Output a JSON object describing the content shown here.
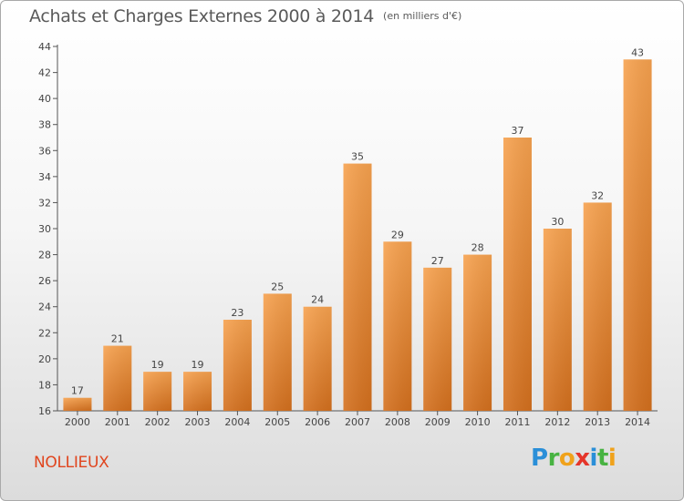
{
  "title": "Achats et Charges Externes 2000 à 2014",
  "subtitle": "(en milliers d'€)",
  "commune": "NOLLIEUX",
  "logo": {
    "text": "Proxiti",
    "colors": [
      "#2a8fd8",
      "#48b342",
      "#f0a21b",
      "#e5352a",
      "#2a8fd8",
      "#48b342",
      "#f0a21b"
    ]
  },
  "chart_data": {
    "type": "bar",
    "categories": [
      "2000",
      "2001",
      "2002",
      "2003",
      "2004",
      "2005",
      "2006",
      "2007",
      "2008",
      "2009",
      "2010",
      "2011",
      "2012",
      "2013",
      "2014"
    ],
    "values": [
      17,
      21,
      19,
      19,
      23,
      25,
      24,
      35,
      29,
      27,
      28,
      37,
      30,
      32,
      43
    ],
    "title": "Achats et Charges Externes 2000 à 2014",
    "subtitle": "(en milliers d'€)",
    "xlabel": "",
    "ylabel": "",
    "ylim": [
      16,
      44
    ],
    "yticks": [
      16,
      18,
      20,
      22,
      24,
      26,
      28,
      30,
      32,
      34,
      36,
      38,
      40,
      42,
      44
    ],
    "grid": false,
    "bar_color_light": "#f7a24f",
    "bar_color_dark": "#d4701e"
  }
}
